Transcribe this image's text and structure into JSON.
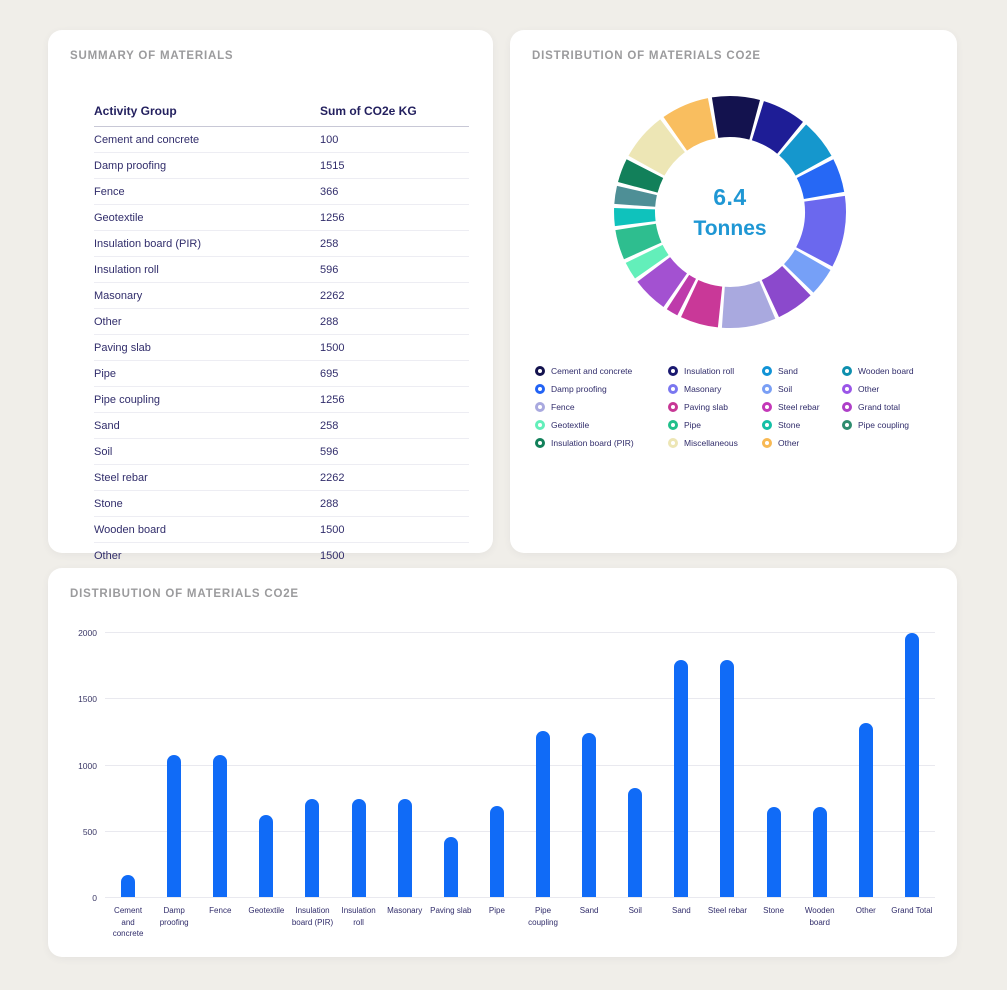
{
  "colors": {
    "background": "#F0EEE9",
    "card": "#FFFFFF",
    "title_gray": "#9B9B9D",
    "text_navy": "#312D6B",
    "bar_blue": "#106BF7",
    "center_label_blue": "#1F97D4",
    "gridline": "#E9E9EF"
  },
  "chart_data": [
    {
      "type": "table",
      "title": "SUMMARY OF MATERIALS",
      "columns": [
        "Activity Group",
        "Sum of CO2e KG"
      ],
      "rows": [
        [
          "Cement and concrete",
          "100"
        ],
        [
          "Damp proofing",
          "1515"
        ],
        [
          "Fence",
          "366"
        ],
        [
          "Geotextile",
          "1256"
        ],
        [
          "Insulation board (PIR)",
          "258"
        ],
        [
          "Insulation roll",
          "596"
        ],
        [
          "Masonary",
          "2262"
        ],
        [
          "Other",
          "288"
        ],
        [
          "Paving slab",
          "1500"
        ],
        [
          "Pipe",
          "695"
        ],
        [
          "Pipe coupling",
          "1256"
        ],
        [
          "Sand",
          "258"
        ],
        [
          "Soil",
          "596"
        ],
        [
          "Steel rebar",
          "2262"
        ],
        [
          "Stone",
          "288"
        ],
        [
          "Wooden board",
          "1500"
        ],
        [
          "Other",
          "1500"
        ]
      ]
    },
    {
      "type": "pie",
      "subtype": "donut",
      "title": "DISTRIBUTION OF MATERIALS  CO2e",
      "center_label": {
        "value": "6.4",
        "unit": "Tonnes",
        "color": "#1F97D4"
      },
      "start_angle_deg": -10,
      "segments": [
        {
          "name": "Cement and concrete",
          "color": "#13124E",
          "angle_deg": 26
        },
        {
          "name": "Insulation roll",
          "color": "#1E1D96",
          "angle_deg": 24
        },
        {
          "name": "Sand",
          "color": "#1597CD",
          "angle_deg": 22
        },
        {
          "name": "Damp proofing",
          "color": "#2668F5",
          "angle_deg": 19
        },
        {
          "name": "Masonary",
          "color": "#6B68EE",
          "angle_deg": 38
        },
        {
          "name": "Soil",
          "color": "#76A0F7",
          "angle_deg": 16
        },
        {
          "name": "Other",
          "color": "#8B49CC",
          "angle_deg": 21
        },
        {
          "name": "Fence",
          "color": "#A9A9DF",
          "angle_deg": 29
        },
        {
          "name": "Paving slab",
          "color": "#C93898",
          "angle_deg": 21
        },
        {
          "name": "Steel rebar",
          "color": "#BE3AAB",
          "angle_deg": 8
        },
        {
          "name": "Grand total",
          "color": "#A351D1",
          "angle_deg": 20
        },
        {
          "name": "Geotextile",
          "color": "#63EFBA",
          "angle_deg": 11
        },
        {
          "name": "Pipe",
          "color": "#2EBE8F",
          "angle_deg": 17
        },
        {
          "name": "Stone",
          "color": "#0FC2BC",
          "angle_deg": 11
        },
        {
          "name": "Pipe coupling",
          "color": "#4E8F96",
          "angle_deg": 11
        },
        {
          "name": "Insulation board (PIR)",
          "color": "#12805A",
          "angle_deg": 14
        },
        {
          "name": "Miscellaneous",
          "color": "#EDE6B5",
          "angle_deg": 26
        },
        {
          "name": "Other",
          "color": "#F9BE5F",
          "angle_deg": 26
        }
      ],
      "legend_columns": [
        [
          {
            "label": "Cement and concrete",
            "color": "#13124E"
          },
          {
            "label": "Damp proofing",
            "color": "#2263F5"
          },
          {
            "label": "Fence",
            "color": "#A9A9DF"
          },
          {
            "label": "Geotextile",
            "color": "#63EFBA"
          },
          {
            "label": "Insulation board (PIR)",
            "color": "#12805A"
          }
        ],
        [
          {
            "label": "Insulation roll",
            "color": "#1A1970"
          },
          {
            "label": "Masonary",
            "color": "#7A77F0"
          },
          {
            "label": "Paving slab",
            "color": "#C73795"
          },
          {
            "label": "Pipe",
            "color": "#21C08B"
          },
          {
            "label": "Miscellaneous",
            "color": "#EDE6B5"
          }
        ],
        [
          {
            "label": "Sand",
            "color": "#1193D6"
          },
          {
            "label": "Soil",
            "color": "#7A9FF5"
          },
          {
            "label": "Steel rebar",
            "color": "#C438B8"
          },
          {
            "label": "Stone",
            "color": "#14BFA6"
          },
          {
            "label": "Other",
            "color": "#F8B954"
          }
        ],
        [
          {
            "label": "Wooden board",
            "color": "#0E8FAE"
          },
          {
            "label": "Other",
            "color": "#9A55E8"
          },
          {
            "label": "Grand total",
            "color": "#AE3FC8"
          },
          {
            "label": "Pipe coupling",
            "color": "#2E8C6E"
          }
        ]
      ]
    },
    {
      "type": "bar",
      "title": "DISTRIBUTION OF MATERIALS CO2e",
      "categories": [
        "Cement and concrete",
        "Damp proofing",
        "Fence",
        "Geotextile",
        "Insulation board (PIR)",
        "Insulation roll",
        "Masonary",
        "Paving slab",
        "Pipe",
        "Pipe coupling",
        "Sand",
        "Soil",
        "Sand",
        "Steel rebar",
        "Stone",
        "Wooden board",
        "Other",
        "Grand Total"
      ],
      "values": [
        170,
        1070,
        1070,
        620,
        740,
        740,
        740,
        450,
        690,
        1250,
        1240,
        820,
        1790,
        1790,
        680,
        680,
        1310,
        1990
      ],
      "xlabel": "",
      "ylabel": "",
      "ylim": [
        0,
        2000
      ],
      "yticks": [
        0,
        500,
        1000,
        1500,
        2000
      ],
      "bar_color": "#106BF7",
      "grid": true,
      "legend_position": "none"
    }
  ]
}
